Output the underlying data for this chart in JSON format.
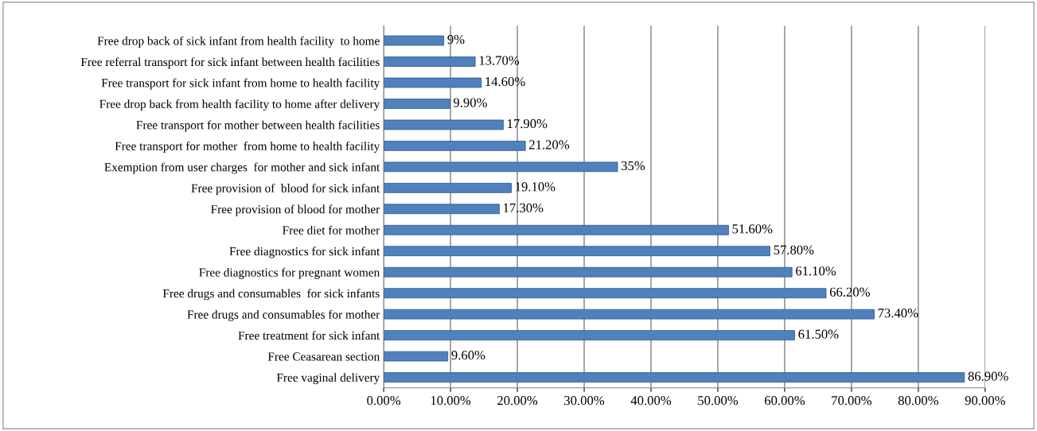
{
  "chart_data": {
    "type": "bar",
    "orientation": "horizontal",
    "categories": [
      "Free drop back of sick infant from health facility  to home",
      "Free referral transport for sick infant between health facilities",
      "Free transport for sick infant from home to health facility",
      "Free drop back from health facility to home after delivery",
      "Free transport for mother between health facilities",
      "Free transport for mother  from home to health facility",
      "Exemption from user charges  for mother and sick infant",
      "Free provision of  blood for sick infant",
      "Free provision of blood for mother",
      "Free diet for mother",
      "Free diagnostics for sick infant",
      "Free diagnostics for pregnant women",
      "Free drugs and consumables  for sick infants",
      "Free drugs and consumables for mother",
      "Free treatment for sick infant",
      "Free Ceasarean section",
      "Free vaginal delivery"
    ],
    "values": [
      9,
      13.7,
      14.6,
      9.9,
      17.9,
      21.2,
      35,
      19.1,
      17.3,
      51.6,
      57.8,
      61.1,
      66.2,
      73.4,
      61.5,
      9.6,
      86.9
    ],
    "value_labels": [
      "9%",
      "13.70%",
      "14.60%",
      "9.90%",
      "17.90%",
      "21.20%",
      "35%",
      "19.10%",
      "17.30%",
      "51.60%",
      "57.80%",
      "61.10%",
      "66.20%",
      "73.40%",
      "61.50%",
      "9.60%",
      "86.90%"
    ],
    "color": "#4f81bd",
    "xlim": [
      0,
      90
    ],
    "xticks": [
      {
        "value": 0,
        "label": "0.00%"
      },
      {
        "value": 10,
        "label": "10.00%"
      },
      {
        "value": 20,
        "label": "20.00%"
      },
      {
        "value": 30,
        "label": "30.00%"
      },
      {
        "value": 40,
        "label": "40.00%"
      },
      {
        "value": 50,
        "label": "50.00%"
      },
      {
        "value": 60,
        "label": "60.00%"
      },
      {
        "value": 70,
        "label": "70.00%"
      },
      {
        "value": 80,
        "label": "80.00%"
      },
      {
        "value": 90,
        "label": "90.00%"
      }
    ],
    "grid": "x",
    "legend": false
  }
}
